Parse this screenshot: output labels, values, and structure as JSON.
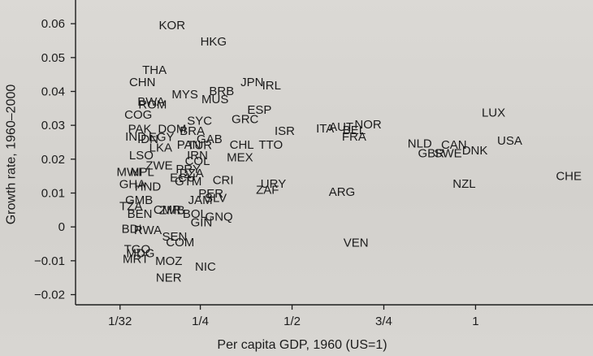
{
  "chart_data": {
    "type": "scatter",
    "title": "",
    "xlabel": "Per capita GDP, 1960 (US=1)",
    "ylabel": "Growth rate, 1960–2000",
    "xlim": [
      -0.09,
      1.32
    ],
    "ylim": [
      -0.023,
      0.067
    ],
    "grid": false,
    "xticks": [
      {
        "value": 0.03125,
        "label": "1/32"
      },
      {
        "value": 0.25,
        "label": "1/4"
      },
      {
        "value": 0.5,
        "label": "1/2"
      },
      {
        "value": 0.75,
        "label": "3/4"
      },
      {
        "value": 1,
        "label": "1"
      }
    ],
    "yticks": [
      {
        "value": 0.06,
        "label": "0.06"
      },
      {
        "value": 0.05,
        "label": "0.05"
      },
      {
        "value": 0.04,
        "label": "0.04"
      },
      {
        "value": 0.03,
        "label": "0.03"
      },
      {
        "value": 0.02,
        "label": "0.02"
      },
      {
        "value": 0.01,
        "label": "0.01"
      },
      {
        "value": 0,
        "label": "0"
      },
      {
        "value": -0.01,
        "label": "−0.01"
      },
      {
        "value": -0.02,
        "label": "−0.02"
      }
    ],
    "points": [
      {
        "label": "KOR",
        "x": 0.173,
        "y": 0.0595
      },
      {
        "label": "HKG",
        "x": 0.286,
        "y": 0.0547
      },
      {
        "label": "THA",
        "x": 0.125,
        "y": 0.0463
      },
      {
        "label": "CHN",
        "x": 0.092,
        "y": 0.0427
      },
      {
        "label": "JPN",
        "x": 0.391,
        "y": 0.0427
      },
      {
        "label": "IRL",
        "x": 0.444,
        "y": 0.0417
      },
      {
        "label": "MYS",
        "x": 0.208,
        "y": 0.0391
      },
      {
        "label": "BRB",
        "x": 0.308,
        "y": 0.04
      },
      {
        "label": "MUS",
        "x": 0.29,
        "y": 0.0376
      },
      {
        "label": "BWA",
        "x": 0.116,
        "y": 0.0369
      },
      {
        "label": "ROM",
        "x": 0.12,
        "y": 0.036
      },
      {
        "label": "ESP",
        "x": 0.411,
        "y": 0.0345
      },
      {
        "label": "COG",
        "x": 0.081,
        "y": 0.0331
      },
      {
        "label": "SYC",
        "x": 0.248,
        "y": 0.0312
      },
      {
        "label": "GRC",
        "x": 0.372,
        "y": 0.0317
      },
      {
        "label": "LUX",
        "x": 1.049,
        "y": 0.0336
      },
      {
        "label": "PAK",
        "x": 0.085,
        "y": 0.0288
      },
      {
        "label": "DOM",
        "x": 0.173,
        "y": 0.0288
      },
      {
        "label": "BRA",
        "x": 0.228,
        "y": 0.0283
      },
      {
        "label": "ISR",
        "x": 0.48,
        "y": 0.0283
      },
      {
        "label": "ITA",
        "x": 0.59,
        "y": 0.029
      },
      {
        "label": "AUT",
        "x": 0.634,
        "y": 0.0295
      },
      {
        "label": "NOR",
        "x": 0.707,
        "y": 0.0302
      },
      {
        "label": "BEL",
        "x": 0.669,
        "y": 0.0285
      },
      {
        "label": "FRA",
        "x": 0.669,
        "y": 0.0266
      },
      {
        "label": "IND",
        "x": 0.074,
        "y": 0.0266
      },
      {
        "label": "IDN",
        "x": 0.107,
        "y": 0.0259
      },
      {
        "label": "EGY",
        "x": 0.144,
        "y": 0.0264
      },
      {
        "label": "PAN",
        "x": 0.219,
        "y": 0.0242
      },
      {
        "label": "TUR",
        "x": 0.248,
        "y": 0.024
      },
      {
        "label": "GAB",
        "x": 0.275,
        "y": 0.0259
      },
      {
        "label": "CHL",
        "x": 0.363,
        "y": 0.0242
      },
      {
        "label": "TTO",
        "x": 0.442,
        "y": 0.0242
      },
      {
        "label": "USA",
        "x": 1.093,
        "y": 0.0254
      },
      {
        "label": "NLD",
        "x": 0.848,
        "y": 0.0245
      },
      {
        "label": "CAN",
        "x": 0.941,
        "y": 0.0242
      },
      {
        "label": "GBR",
        "x": 0.879,
        "y": 0.0216
      },
      {
        "label": "SWE",
        "x": 0.925,
        "y": 0.0216
      },
      {
        "label": "DNK",
        "x": 0.998,
        "y": 0.0225
      },
      {
        "label": "LKA",
        "x": 0.142,
        "y": 0.0233
      },
      {
        "label": "LSO",
        "x": 0.089,
        "y": 0.0211
      },
      {
        "label": "IRN",
        "x": 0.242,
        "y": 0.0211
      },
      {
        "label": "COL",
        "x": 0.242,
        "y": 0.0194
      },
      {
        "label": "MEX",
        "x": 0.358,
        "y": 0.0204
      },
      {
        "label": "ZWE",
        "x": 0.138,
        "y": 0.018
      },
      {
        "label": "PRY",
        "x": 0.217,
        "y": 0.017
      },
      {
        "label": "MWI",
        "x": 0.056,
        "y": 0.0161
      },
      {
        "label": "NPL",
        "x": 0.092,
        "y": 0.0161
      },
      {
        "label": "DZA",
        "x": 0.226,
        "y": 0.0158
      },
      {
        "label": "ECU",
        "x": 0.202,
        "y": 0.0144
      },
      {
        "label": "GTM",
        "x": 0.217,
        "y": 0.0134
      },
      {
        "label": "CRI",
        "x": 0.312,
        "y": 0.0137
      },
      {
        "label": "CHE",
        "x": 1.254,
        "y": 0.0149
      },
      {
        "label": "NZL",
        "x": 0.969,
        "y": 0.0127
      },
      {
        "label": "URY",
        "x": 0.449,
        "y": 0.0127
      },
      {
        "label": "ZAF",
        "x": 0.433,
        "y": 0.0108
      },
      {
        "label": "ARG",
        "x": 0.636,
        "y": 0.0103
      },
      {
        "label": "GHA",
        "x": 0.065,
        "y": 0.0125
      },
      {
        "label": "HND",
        "x": 0.107,
        "y": 0.0118
      },
      {
        "label": "PER",
        "x": 0.279,
        "y": 0.0098
      },
      {
        "label": "JAM",
        "x": 0.25,
        "y": 0.0079
      },
      {
        "label": "SLV",
        "x": 0.292,
        "y": 0.0084
      },
      {
        "label": "GMB",
        "x": 0.083,
        "y": 0.0079
      },
      {
        "label": "TZA",
        "x": 0.061,
        "y": 0.006
      },
      {
        "label": "BEN",
        "x": 0.085,
        "y": 0.0038
      },
      {
        "label": "CMR",
        "x": 0.16,
        "y": 0.005
      },
      {
        "label": "ZMB",
        "x": 0.173,
        "y": 0.0048
      },
      {
        "label": "BOL",
        "x": 0.235,
        "y": 0.0038
      },
      {
        "label": "GNQ",
        "x": 0.301,
        "y": 0.0029
      },
      {
        "label": "GIN",
        "x": 0.253,
        "y": 0.0012
      },
      {
        "label": "BDI",
        "x": 0.063,
        "y": -0.0007
      },
      {
        "label": "RWA",
        "x": 0.107,
        "y": -0.001
      },
      {
        "label": "SEN",
        "x": 0.18,
        "y": -0.0029
      },
      {
        "label": "COM",
        "x": 0.195,
        "y": -0.0046
      },
      {
        "label": "VEN",
        "x": 0.674,
        "y": -0.0048
      },
      {
        "label": "TGO",
        "x": 0.078,
        "y": -0.0067
      },
      {
        "label": "MDG",
        "x": 0.087,
        "y": -0.0079
      },
      {
        "label": "MRT",
        "x": 0.074,
        "y": -0.0096
      },
      {
        "label": "MOZ",
        "x": 0.164,
        "y": -0.0101
      },
      {
        "label": "NIC",
        "x": 0.264,
        "y": -0.0118
      },
      {
        "label": "NER",
        "x": 0.164,
        "y": -0.0151
      }
    ]
  },
  "colors": {
    "text": "#1c1c1c",
    "axis": "#1c1c1c",
    "background": "#d6d4d0"
  }
}
